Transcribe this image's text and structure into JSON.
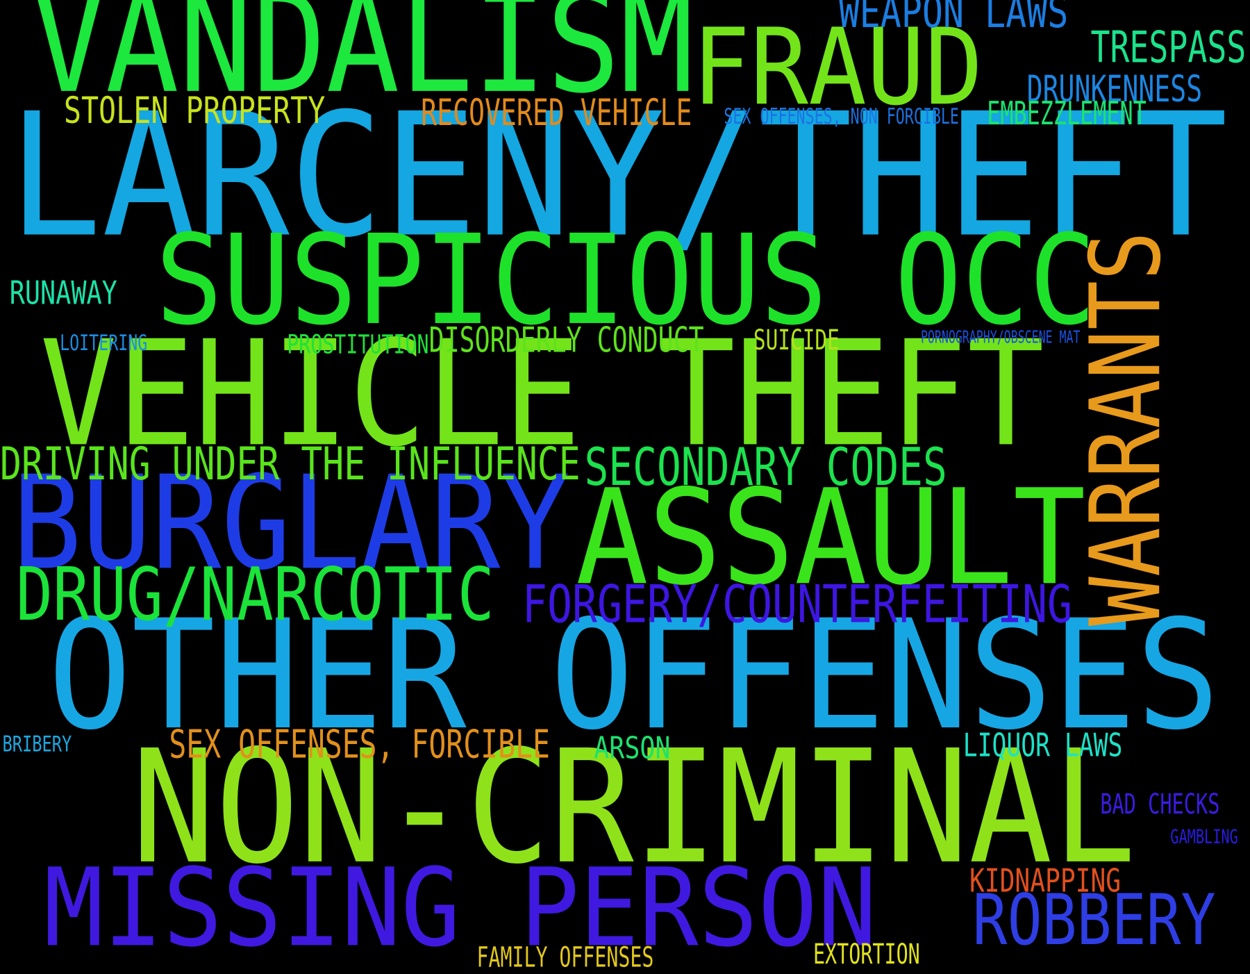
{
  "word_cloud": {
    "background": "#000000",
    "words": [
      {
        "text": "LARCENY/THEFT",
        "color": "#14A7E2"
      },
      {
        "text": "OTHER OFFENSES",
        "color": "#17A6E4"
      },
      {
        "text": "NON-CRIMINAL",
        "color": "#8FE21A"
      },
      {
        "text": "VEHICLE THEFT",
        "color": "#73E41A"
      },
      {
        "text": "VANDALISM",
        "color": "#1CE83E"
      },
      {
        "text": "SUSPICIOUS OCC",
        "color": "#1EE22A"
      },
      {
        "text": "ASSAULT",
        "color": "#3AE41A"
      },
      {
        "text": "BURGLARY",
        "color": "#1E3CE6"
      },
      {
        "text": "MISSING PERSON",
        "color": "#4019E0"
      },
      {
        "text": "WARRANTS",
        "color": "#E89A1C"
      },
      {
        "text": "FRAUD",
        "color": "#74E41A"
      },
      {
        "text": "DRUG/NARCOTIC",
        "color": "#1BE33A"
      },
      {
        "text": "ROBBERY",
        "color": "#2E3EE4"
      },
      {
        "text": "FORGERY/COUNTERFEITING",
        "color": "#3E16E2"
      },
      {
        "text": "SECONDARY CODES",
        "color": "#1CE24E"
      },
      {
        "text": "DRIVING UNDER THE INFLUENCE",
        "color": "#5AE41C"
      },
      {
        "text": "WEAPON LAWS",
        "color": "#1B7EE2"
      },
      {
        "text": "TRESPASS",
        "color": "#1CE28C"
      },
      {
        "text": "DRUNKENNESS",
        "color": "#1C86E2"
      },
      {
        "text": "STOLEN PROPERTY",
        "color": "#C8E21C"
      },
      {
        "text": "RECOVERED VEHICLE",
        "color": "#E28A1C"
      },
      {
        "text": "SEX OFFENSES, NON FORCIBLE",
        "color": "#1C72E2"
      },
      {
        "text": "EMBEZZLEMENT",
        "color": "#1CE270"
      },
      {
        "text": "RUNAWAY",
        "color": "#1CE2A8"
      },
      {
        "text": "LOITERING",
        "color": "#1C8CE2"
      },
      {
        "text": "PROSTITUTION",
        "color": "#1EE23A"
      },
      {
        "text": "DISORDERLY CONDUCT",
        "color": "#5EE21C"
      },
      {
        "text": "SUICIDE",
        "color": "#B4E21C"
      },
      {
        "text": "PORNOGRAPHY/OBSCENE MAT",
        "color": "#1C52E2"
      },
      {
        "text": "SEX OFFENSES, FORCIBLE",
        "color": "#E2901C"
      },
      {
        "text": "ARSON",
        "color": "#1CE270"
      },
      {
        "text": "LIQUOR LAWS",
        "color": "#1CE2C8"
      },
      {
        "text": "BRIBERY",
        "color": "#1CA8E2"
      },
      {
        "text": "BAD CHECKS",
        "color": "#3A1CE2"
      },
      {
        "text": "GAMBLING",
        "color": "#2A1CE2"
      },
      {
        "text": "KIDNAPPING",
        "color": "#E2501C"
      },
      {
        "text": "FAMILY OFFENSES",
        "color": "#E2C81C"
      },
      {
        "text": "EXTORTION",
        "color": "#E2E21C"
      }
    ]
  }
}
